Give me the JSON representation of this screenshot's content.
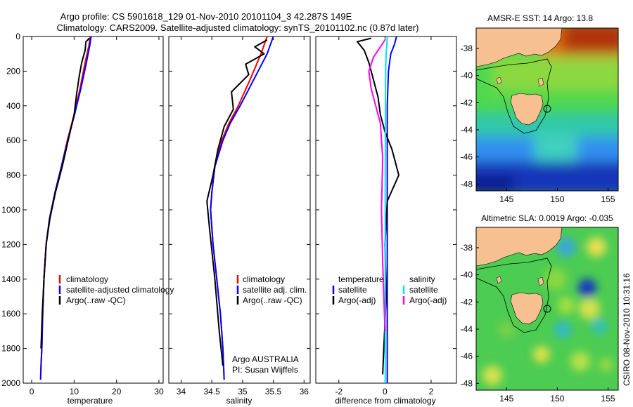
{
  "header": {
    "line1": "Argo profile: CS 5901618_129 01-Nov-2010 20101104_3 42.287S 149E",
    "line2": "Climatology: CARS2009. Satellite-adjusted climatology: synTS_20101102.nc (0.87d later)"
  },
  "side_label": "CSIRO 08-Nov-2010 10:31:16",
  "chart_data": [
    {
      "type": "line",
      "xlabel": "temperature",
      "ylabel": "",
      "xlim": [
        -2,
        31
      ],
      "ylim": [
        2000,
        0
      ],
      "xticks": [
        "0",
        "10",
        "20",
        "30"
      ],
      "yticks": [
        "0",
        "200",
        "400",
        "600",
        "800",
        "1000",
        "1200",
        "1400",
        "1600",
        "1800",
        "2000"
      ],
      "legend": [
        "climatology",
        "satellite-adjusted climatology",
        "Argo(..raw -QC)"
      ],
      "series": [
        {
          "name": "climatology",
          "color": "#ff0000",
          "x": [
            13.8,
            13.5,
            12.6,
            11.4,
            10.0,
            8.4,
            7.0,
            5.5,
            4.2,
            3.4,
            2.9,
            2.6,
            2.4,
            2.2,
            2.1
          ],
          "y": [
            0,
            50,
            150,
            300,
            450,
            600,
            750,
            900,
            1050,
            1200,
            1400,
            1600,
            1800,
            1900,
            1980
          ]
        },
        {
          "name": "satellite-adjusted climatology",
          "color": "#0000ff",
          "x": [
            14.0,
            13.7,
            12.9,
            11.6,
            10.1,
            8.5,
            7.0,
            5.5,
            4.2,
            3.4,
            2.9,
            2.6,
            2.4,
            2.2,
            2.1
          ],
          "y": [
            0,
            50,
            150,
            300,
            450,
            600,
            750,
            900,
            1050,
            1200,
            1400,
            1600,
            1800,
            1900,
            1980
          ]
        },
        {
          "name": "Argo(..raw -QC)",
          "color": "#000000",
          "x": [
            13.6,
            12.8,
            12.6,
            11.8,
            11.2,
            10.6,
            10.0,
            8.6,
            7.2,
            5.6,
            4.3,
            3.4,
            2.9,
            2.5,
            2.2
          ],
          "y": [
            10,
            30,
            80,
            150,
            230,
            330,
            450,
            600,
            750,
            900,
            1050,
            1200,
            1400,
            1600,
            1800
          ]
        }
      ]
    },
    {
      "type": "line",
      "xlabel": "salinity",
      "ylabel": "",
      "xlim": [
        33.8,
        36.1
      ],
      "ylim": [
        2000,
        0
      ],
      "xticks": [
        "34",
        "34.5",
        "35",
        "35.5",
        "36"
      ],
      "yticks": [],
      "legend": [
        "climatology",
        "satellite adj. clim.",
        "Argo(..raw -QC)"
      ],
      "annotation": [
        "Argo AUSTRALIA",
        "PI: Susan Wijffels"
      ],
      "series": [
        {
          "name": "climatology",
          "color": "#ff0000",
          "x": [
            35.4,
            35.3,
            35.12,
            34.93,
            34.78,
            34.66,
            34.55,
            34.5,
            34.48,
            34.52,
            34.58,
            34.64,
            34.68,
            34.7
          ],
          "y": [
            0,
            100,
            250,
            400,
            500,
            600,
            750,
            900,
            1000,
            1200,
            1400,
            1600,
            1800,
            1980
          ]
        },
        {
          "name": "satellite adj. clim.",
          "color": "#0000ff",
          "x": [
            35.5,
            35.4,
            35.18,
            34.96,
            34.8,
            34.68,
            34.55,
            34.5,
            34.48,
            34.52,
            34.58,
            34.64,
            34.68,
            34.7
          ],
          "y": [
            0,
            100,
            250,
            400,
            500,
            600,
            750,
            900,
            1000,
            1200,
            1400,
            1600,
            1800,
            1980
          ]
        },
        {
          "name": "Argo(..raw -QC)",
          "color": "#000000",
          "x": [
            35.4,
            35.2,
            35.35,
            35.05,
            35.1,
            34.82,
            34.85,
            34.7,
            34.6,
            34.52,
            34.42,
            34.46,
            34.55,
            34.62,
            34.68
          ],
          "y": [
            20,
            60,
            100,
            160,
            220,
            320,
            420,
            520,
            650,
            800,
            950,
            1100,
            1400,
            1700,
            1900
          ]
        }
      ]
    },
    {
      "type": "line",
      "xlabel": "difference from climatology",
      "ylabel": "",
      "xlim": [
        -3.0,
        3.1
      ],
      "ylim": [
        2000,
        0
      ],
      "xticks": [
        "-2",
        "0",
        "2"
      ],
      "yticks": [],
      "legend_groups": [
        {
          "title": "temperature",
          "items": [
            "satellite",
            "Argo(-adj)"
          ]
        },
        {
          "title": "salinity",
          "items": [
            "satellite",
            "Argo(-adj)"
          ]
        }
      ],
      "series": [
        {
          "name": "temperature satellite",
          "color": "#0000ff",
          "x": [
            0.5,
            0.4,
            0.25,
            0.15,
            0.1,
            0.1,
            0.1,
            0.1,
            0.1
          ],
          "y": [
            0,
            50,
            100,
            200,
            400,
            800,
            1200,
            1600,
            2000
          ]
        },
        {
          "name": "temperature Argo(-adj)",
          "color": "#000000",
          "x": [
            -0.6,
            -1.2,
            -0.9,
            -0.7,
            -0.5,
            -0.3,
            -0.2,
            0.0,
            0.3,
            0.6,
            0.1,
            0.0,
            0.05,
            -0.05,
            -0.1
          ],
          "y": [
            10,
            30,
            80,
            150,
            250,
            350,
            450,
            550,
            650,
            800,
            950,
            1200,
            1500,
            1800,
            1950
          ]
        },
        {
          "name": "salinity satellite",
          "color": "#00e5ee",
          "x": [
            0.1,
            0.08,
            0.05,
            0.03,
            0.02,
            0.01,
            0.01,
            0.01
          ],
          "y": [
            0,
            50,
            100,
            200,
            400,
            800,
            1400,
            2000
          ]
        },
        {
          "name": "salinity Argo(-adj)",
          "color": "#ff00ff",
          "x": [
            0.0,
            -0.2,
            -0.5,
            -0.7,
            -0.6,
            -0.4,
            -0.2,
            -0.1,
            -0.15,
            -0.1,
            -0.05,
            0.0
          ],
          "y": [
            20,
            60,
            120,
            200,
            300,
            400,
            500,
            700,
            1000,
            1300,
            1500,
            1700
          ]
        }
      ]
    },
    {
      "type": "heatmap",
      "title": "AMSR-E SST: 14 Argo: 13.8",
      "xlim": [
        142,
        156
      ],
      "ylim": [
        -48.5,
        -36.5
      ],
      "xticks": [
        "145",
        "150",
        "155"
      ],
      "yticks": [
        "-38",
        "-40",
        "-42",
        "-44",
        "-46",
        "-48"
      ],
      "marker": {
        "lon": 149,
        "lat": -42.287
      }
    },
    {
      "type": "heatmap",
      "title": "Altimetric SLA: 0.0019 Argo: -0.035",
      "xlim": [
        142,
        156
      ],
      "ylim": [
        -48.5,
        -36.5
      ],
      "xticks": [
        "145",
        "150",
        "155"
      ],
      "yticks": [
        "-38",
        "-40",
        "-42",
        "-44",
        "-46",
        "-48"
      ],
      "marker": {
        "lon": 149,
        "lat": -42.287
      }
    }
  ]
}
